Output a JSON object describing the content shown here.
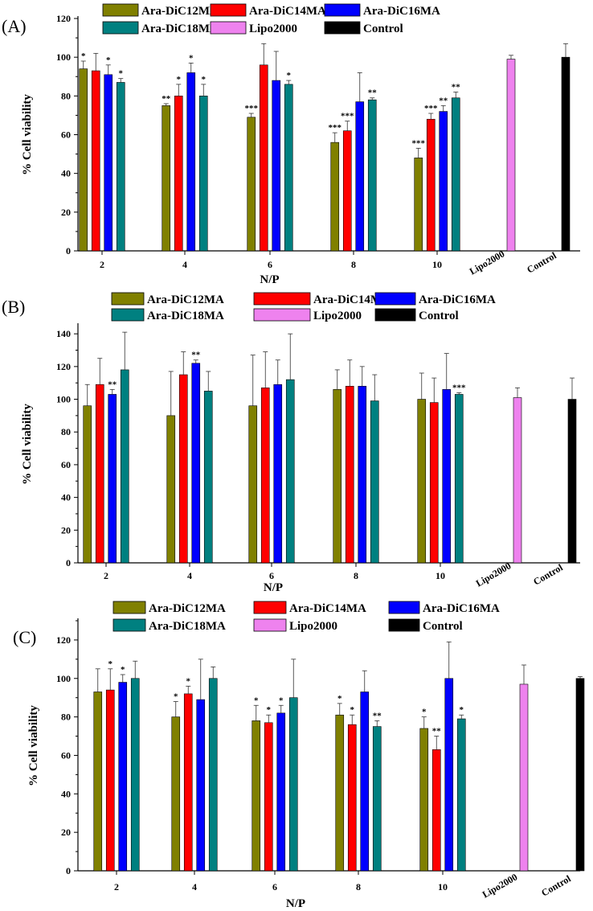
{
  "colors": {
    "Ara-DiC12MA": "#808000",
    "Ara-DiC14MA": "#ff0000",
    "Ara-DiC16MA": "#0000ff",
    "Ara-DiC18MA": "#008080",
    "Lipo2000": "#ee82ee",
    "Control": "#000000"
  },
  "chart_data": [
    {
      "type": "bar",
      "panel_label": "(A)",
      "xlabel": "N/P",
      "ylabel": "% Cell viability",
      "ylim": [
        0,
        120
      ],
      "yticks": [
        "0",
        "20",
        "40",
        "60",
        "80",
        "100",
        "120"
      ],
      "legend": [
        "Ara-DiC12MA",
        "Ara-DiC14MA",
        "Ara-DiC16MA",
        "Ara-DiC18MA",
        "Lipo2000",
        "Control"
      ],
      "categories": [
        "2",
        "4",
        "6",
        "8",
        "10"
      ],
      "series": [
        {
          "name": "Ara-DiC12MA",
          "values": [
            94,
            75,
            69,
            56,
            48
          ],
          "errors": [
            4,
            1,
            2,
            5,
            5
          ],
          "sig": [
            "*",
            "**",
            "***",
            "***",
            "***"
          ]
        },
        {
          "name": "Ara-DiC14MA",
          "values": [
            93,
            80,
            96,
            62,
            68
          ],
          "errors": [
            9,
            6,
            11,
            5,
            3
          ],
          "sig": [
            "",
            "*",
            "",
            "***",
            "***"
          ]
        },
        {
          "name": "Ara-DiC16MA",
          "values": [
            91,
            92,
            88,
            77,
            72
          ],
          "errors": [
            5,
            5,
            15,
            15,
            3
          ],
          "sig": [
            "*",
            "*",
            "",
            "",
            "**"
          ]
        },
        {
          "name": "Ara-DiC18MA",
          "values": [
            87,
            80,
            86,
            78,
            79
          ],
          "errors": [
            2,
            6,
            2,
            1,
            3
          ],
          "sig": [
            "*",
            "*",
            "*",
            "**",
            "**"
          ]
        }
      ],
      "extra_bars": [
        {
          "name": "Lipo2000",
          "label": "Lipo2000",
          "value": 99,
          "error": 2
        },
        {
          "name": "Control",
          "label": "Control",
          "value": 100,
          "error": 7
        }
      ]
    },
    {
      "type": "bar",
      "panel_label": "(B)",
      "xlabel": "N/P",
      "ylabel": "% Cell viability",
      "ylim": [
        0,
        145
      ],
      "yticks": [
        "0",
        "20",
        "40",
        "60",
        "80",
        "100",
        "120",
        "140"
      ],
      "legend": [
        "Ara-DiC12MA",
        "Ara-DiC14MA",
        "Ara-DiC16MA",
        "Ara-DiC18MA",
        "Lipo2000",
        "Control"
      ],
      "categories": [
        "2",
        "4",
        "6",
        "8",
        "10"
      ],
      "series": [
        {
          "name": "Ara-DiC12MA",
          "values": [
            96,
            90,
            96,
            106,
            100
          ],
          "errors": [
            13,
            27,
            31,
            12,
            16
          ],
          "sig": [
            "",
            "",
            "",
            "",
            ""
          ]
        },
        {
          "name": "Ara-DiC14MA",
          "values": [
            109,
            115,
            107,
            108,
            98
          ],
          "errors": [
            16,
            14,
            22,
            16,
            15
          ],
          "sig": [
            "",
            "",
            "",
            "",
            ""
          ]
        },
        {
          "name": "Ara-DiC16MA",
          "values": [
            103,
            122,
            109,
            108,
            106
          ],
          "errors": [
            3,
            2,
            15,
            12,
            22
          ],
          "sig": [
            "**",
            "**",
            "",
            "",
            ""
          ]
        },
        {
          "name": "Ara-DiC18MA",
          "values": [
            118,
            105,
            112,
            99,
            103
          ],
          "errors": [
            23,
            12,
            28,
            16,
            1
          ],
          "sig": [
            "",
            "",
            "",
            "",
            "***"
          ]
        }
      ],
      "extra_bars": [
        {
          "name": "Lipo2000",
          "label": "Lipo2000",
          "value": 101,
          "error": 6
        },
        {
          "name": "Control",
          "label": "Control",
          "value": 100,
          "error": 13
        }
      ]
    },
    {
      "type": "bar",
      "panel_label": "(C)",
      "xlabel": "N/P",
      "ylabel": "% Cell viability",
      "ylim": [
        0,
        130
      ],
      "yticks": [
        "0",
        "20",
        "40",
        "60",
        "80",
        "100",
        "120"
      ],
      "legend": [
        "Ara-DiC12MA",
        "Ara-DiC14MA",
        "Ara-DiC16MA",
        "Ara-DiC18MA",
        "Lipo2000",
        "Control"
      ],
      "categories": [
        "2",
        "4",
        "6",
        "8",
        "10"
      ],
      "series": [
        {
          "name": "Ara-DiC12MA",
          "values": [
            93,
            80,
            78,
            81,
            74
          ],
          "errors": [
            12,
            8,
            8,
            6,
            6
          ],
          "sig": [
            "",
            "*",
            "*",
            "*",
            "*"
          ]
        },
        {
          "name": "Ara-DiC14MA",
          "values": [
            94,
            92,
            77,
            76,
            63
          ],
          "errors": [
            11,
            4,
            4,
            5,
            7
          ],
          "sig": [
            "*",
            "*",
            "*",
            "*",
            "**"
          ]
        },
        {
          "name": "Ara-DiC16MA",
          "values": [
            98,
            89,
            82,
            93,
            100
          ],
          "errors": [
            4,
            21,
            4,
            11,
            19
          ],
          "sig": [
            "*",
            "",
            "*",
            "",
            ""
          ]
        },
        {
          "name": "Ara-DiC18MA",
          "values": [
            100,
            100,
            90,
            75,
            79
          ],
          "errors": [
            9,
            6,
            20,
            3,
            2
          ],
          "sig": [
            "",
            "",
            "",
            "**",
            "*"
          ]
        }
      ],
      "extra_bars": [
        {
          "name": "Lipo2000",
          "label": "Lipo2000",
          "value": 97,
          "error": 10
        },
        {
          "name": "Control",
          "label": "Control",
          "value": 100,
          "error": 1
        }
      ]
    }
  ]
}
